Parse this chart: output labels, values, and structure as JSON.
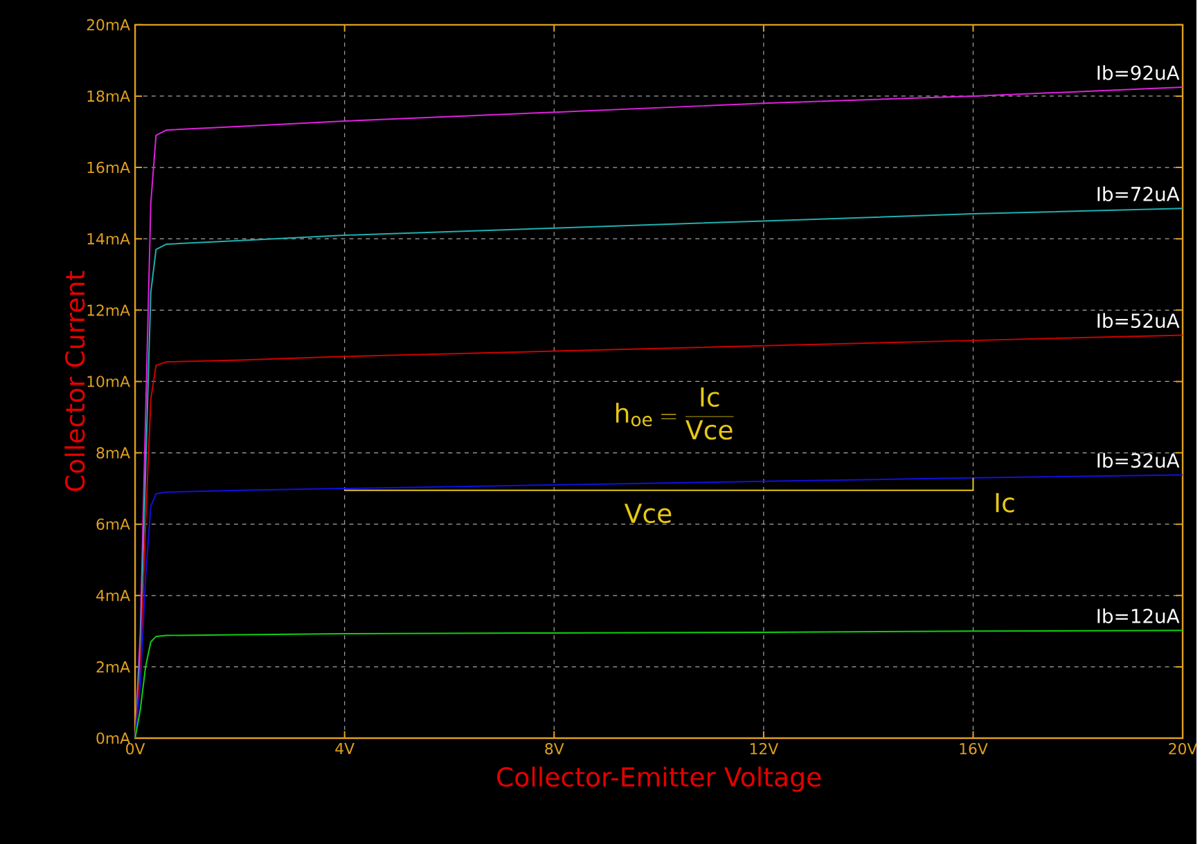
{
  "chart_data": {
    "type": "line",
    "xlabel": "Collector-Emitter Voltage",
    "ylabel": "Collector Current",
    "x": [
      0,
      0.1,
      0.2,
      0.3,
      0.4,
      0.6,
      2,
      4,
      8,
      12,
      16,
      20
    ],
    "series": [
      {
        "name": "Ib=92uA",
        "color": "#e020e0",
        "values": [
          0,
          3,
          9,
          15,
          16.9,
          17.05,
          17.15,
          17.3,
          17.55,
          17.8,
          18.0,
          18.25
        ]
      },
      {
        "name": "Ib=72uA",
        "color": "#20b0b0",
        "values": [
          0,
          2.5,
          7.5,
          12.5,
          13.7,
          13.85,
          13.95,
          14.1,
          14.3,
          14.5,
          14.7,
          14.85
        ]
      },
      {
        "name": "Ib=52uA",
        "color": "#d00000",
        "values": [
          0,
          2,
          6,
          9.5,
          10.45,
          10.55,
          10.6,
          10.7,
          10.85,
          11.0,
          11.15,
          11.3
        ]
      },
      {
        "name": "Ib=32uA",
        "color": "#1010e0",
        "values": [
          0,
          1.5,
          4.5,
          6.5,
          6.85,
          6.9,
          6.95,
          7.0,
          7.1,
          7.2,
          7.3,
          7.38
        ]
      },
      {
        "name": "Ib=12uA",
        "color": "#10d010",
        "values": [
          0,
          0.8,
          2.0,
          2.7,
          2.85,
          2.88,
          2.9,
          2.93,
          2.95,
          2.97,
          3.0,
          3.02
        ]
      }
    ],
    "xlim": [
      0,
      20
    ],
    "ylim": [
      0,
      20
    ],
    "xticks": [
      {
        "value": 0,
        "label": "0V"
      },
      {
        "value": 4,
        "label": "4V"
      },
      {
        "value": 8,
        "label": "8V"
      },
      {
        "value": 12,
        "label": "12V"
      },
      {
        "value": 16,
        "label": "16V"
      },
      {
        "value": 20,
        "label": "20V"
      }
    ],
    "yticks": [
      {
        "value": 0,
        "label": "0mA"
      },
      {
        "value": 2,
        "label": "2mA"
      },
      {
        "value": 4,
        "label": "4mA"
      },
      {
        "value": 6,
        "label": "6mA"
      },
      {
        "value": 8,
        "label": "8mA"
      },
      {
        "value": 10,
        "label": "10mA"
      },
      {
        "value": 12,
        "label": "12mA"
      },
      {
        "value": 14,
        "label": "14mA"
      },
      {
        "value": 16,
        "label": "16mA"
      },
      {
        "value": 18,
        "label": "18mA"
      },
      {
        "value": 20,
        "label": "20mA"
      }
    ],
    "grid": true,
    "annotations": [
      "\\mathrm{h}_{\\mathrm{oe}} = \\frac{\\mathrm{Ic}}{\\mathrm{Vce}}",
      "Vce",
      "Ic"
    ]
  }
}
